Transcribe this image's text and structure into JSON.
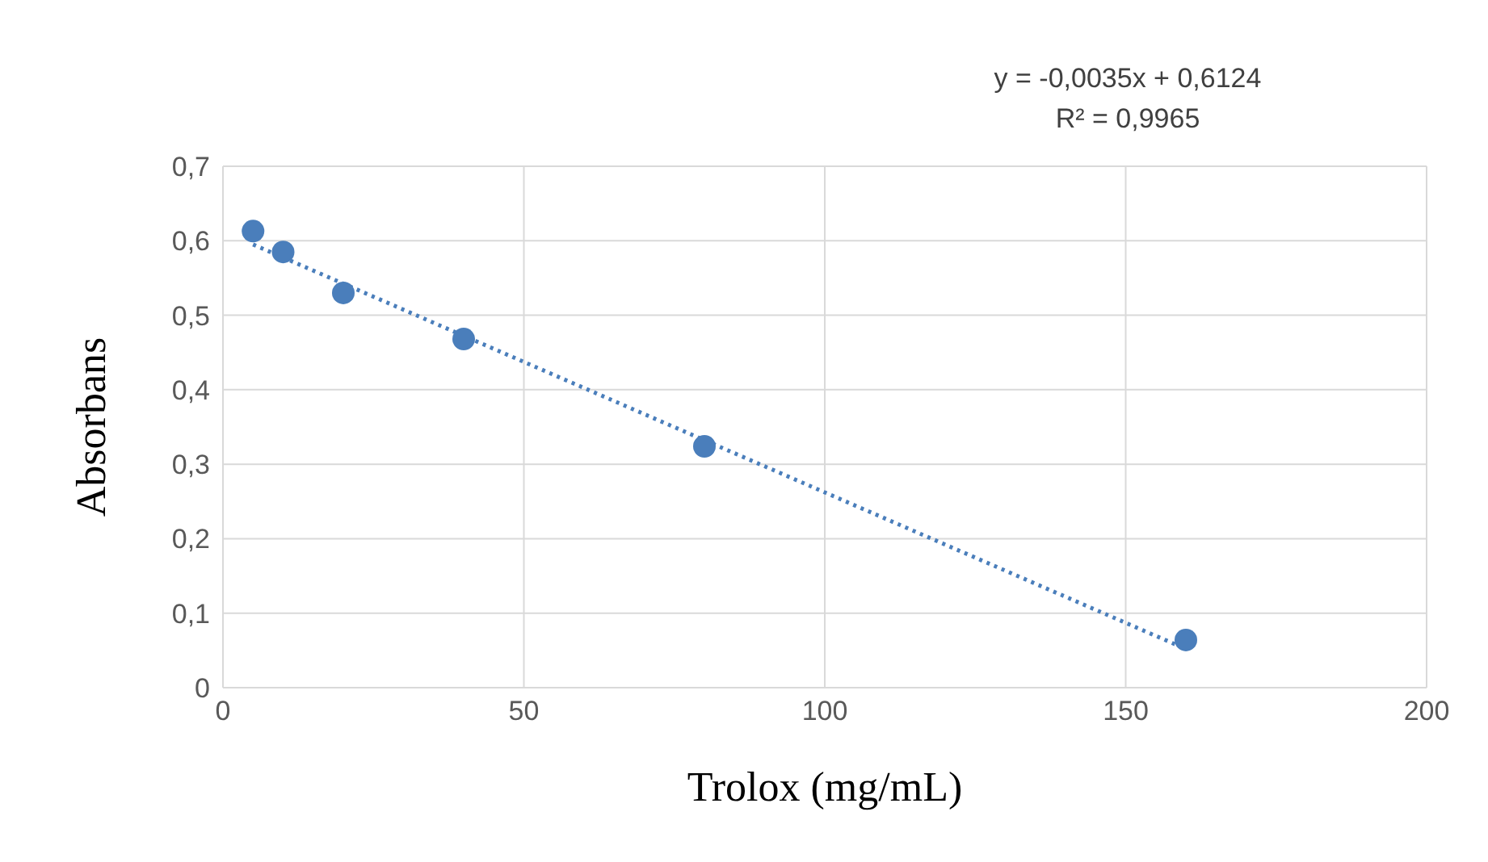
{
  "chart_data": {
    "type": "scatter",
    "xlabel": "Trolox (mg/mL)",
    "ylabel": "Absorbans",
    "series": [
      {
        "color": "#4a7ebb",
        "x": [
          5,
          10,
          20,
          40,
          80,
          160
        ],
        "values": [
          0.613,
          0.585,
          0.53,
          0.468,
          0.324,
          0.064
        ],
        "marker": "circle"
      },
      {
        "type": "line",
        "color": "#4a7ebb",
        "x": [
          5,
          160
        ],
        "values": [
          0.595,
          0.052
        ],
        "marker": "none",
        "line_style": "dotted"
      }
    ],
    "xlim": [
      0,
      200
    ],
    "xticks": [
      0,
      50,
      100,
      150,
      200
    ],
    "ylim": [
      0,
      0.7
    ],
    "yticks": [
      0,
      {
        "value": 0.1,
        "label": "0,1"
      },
      {
        "value": 0.2,
        "label": "0,2"
      },
      {
        "value": 0.3,
        "label": "0,3"
      },
      {
        "value": 0.4,
        "label": "0,4"
      },
      {
        "value": 0.5,
        "label": "0,5"
      },
      {
        "value": 0.6,
        "label": "0,6"
      },
      {
        "value": 0.7,
        "label": "0,7"
      }
    ],
    "grid": true,
    "annotations": [
      "y = -0,0035x + 0,6124",
      "R² = 0,9965"
    ]
  }
}
